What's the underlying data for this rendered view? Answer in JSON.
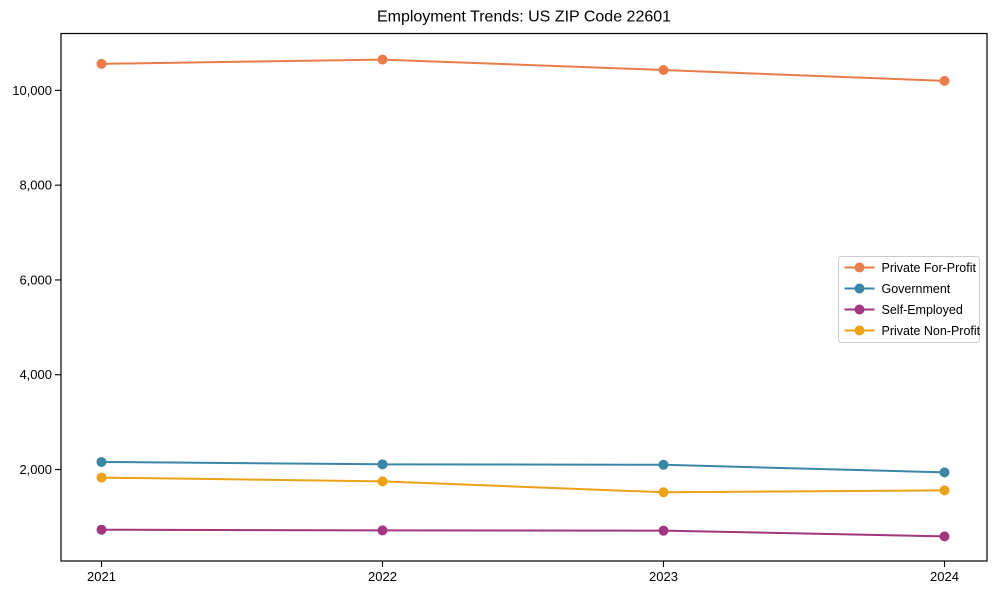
{
  "chart_data": {
    "type": "line",
    "title": "Employment Trends: US ZIP Code 22601",
    "xlabel": "",
    "ylabel": "",
    "x": [
      2021,
      2022,
      2023,
      2024
    ],
    "x_tick_labels": [
      "2021",
      "2022",
      "2023",
      "2024"
    ],
    "y_ticks": [
      2000,
      4000,
      6000,
      8000,
      10000
    ],
    "y_tick_labels": [
      "2,000",
      "4,000",
      "6,000",
      "8,000",
      "10,000"
    ],
    "ylim": [
      70,
      11200
    ],
    "grid": false,
    "legend_position": "center-right",
    "series": [
      {
        "name": "Private For-Profit",
        "color": "#e87d4a",
        "values": [
          10560,
          10650,
          10430,
          10200
        ]
      },
      {
        "name": "Government",
        "color": "#3b86a5",
        "values": [
          2160,
          2110,
          2100,
          1940
        ]
      },
      {
        "name": "Self-Employed",
        "color": "#a23680",
        "values": [
          730,
          715,
          710,
          590
        ]
      },
      {
        "name": "Private Non-Profit",
        "color": "#eda117",
        "values": [
          1830,
          1750,
          1520,
          1560
        ]
      }
    ]
  },
  "colors": {
    "spine": "#000000",
    "legend_border": "#cccccc",
    "legend_bg": "#ffffff"
  }
}
